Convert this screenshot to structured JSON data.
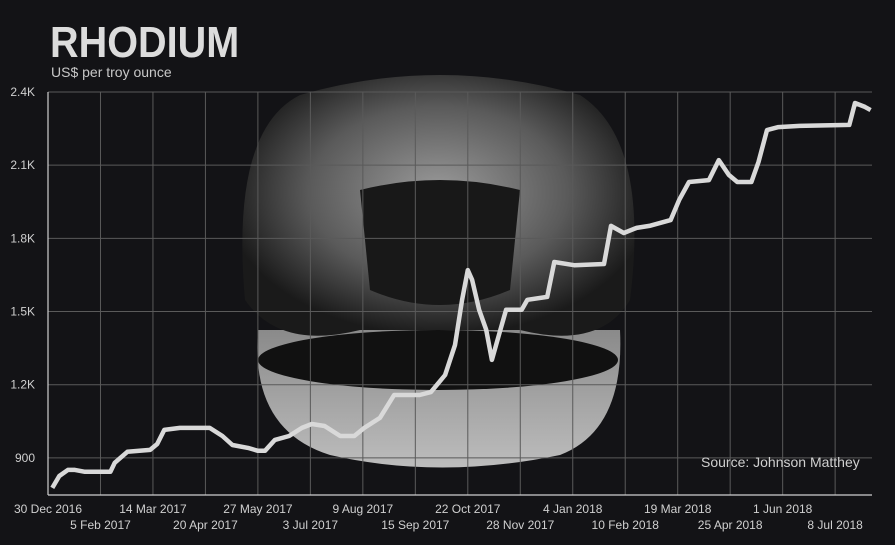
{
  "chart_data": {
    "type": "line",
    "title": "RHODIUM",
    "subtitle": "US$ per troy ounce",
    "source": "Source: Johnson Matthey",
    "xlabel": "",
    "ylabel": "",
    "xlim": [
      "2016-12-30",
      "2018-08-03"
    ],
    "ylim": [
      748,
      2400
    ],
    "grid": true,
    "y_ticks": [
      {
        "value": 900,
        "label": "900"
      },
      {
        "value": 1200,
        "label": "1.2K"
      },
      {
        "value": 1500,
        "label": "1.5K"
      },
      {
        "value": 1800,
        "label": "1.8K"
      },
      {
        "value": 2100,
        "label": "2.1K"
      },
      {
        "value": 2400,
        "label": "2.4K"
      }
    ],
    "x_ticks": [
      {
        "date": "2016-12-30",
        "label": "30 Dec 2016"
      },
      {
        "date": "2017-02-05",
        "label": "5 Feb 2017"
      },
      {
        "date": "2017-03-14",
        "label": "14 Mar 2017"
      },
      {
        "date": "2017-04-20",
        "label": "20 Apr 2017"
      },
      {
        "date": "2017-05-27",
        "label": "27 May 2017"
      },
      {
        "date": "2017-07-03",
        "label": "3 Jul 2017"
      },
      {
        "date": "2017-08-09",
        "label": "9 Aug 2017"
      },
      {
        "date": "2017-09-15",
        "label": "15 Sep 2017"
      },
      {
        "date": "2017-10-22",
        "label": "22 Oct 2017"
      },
      {
        "date": "2017-11-28",
        "label": "28 Nov 2017"
      },
      {
        "date": "2018-01-04",
        "label": "4 Jan 2018"
      },
      {
        "date": "2018-02-10",
        "label": "10 Feb 2018"
      },
      {
        "date": "2018-03-19",
        "label": "19 Mar 2018"
      },
      {
        "date": "2018-04-25",
        "label": "25 Apr 2018"
      },
      {
        "date": "2018-06-01",
        "label": "1 Jun 2018"
      },
      {
        "date": "2018-07-08",
        "label": "8 Jul 2018"
      }
    ],
    "line_color": "#d9d9d9",
    "series": [
      {
        "x": [
          "2017-01-02",
          "2017-01-07",
          "2017-01-13",
          "2017-01-18",
          "2017-01-25",
          "2017-02-12",
          "2017-02-15",
          "2017-02-19",
          "2017-02-24",
          "2017-03-12",
          "2017-03-17",
          "2017-03-22",
          "2017-04-02",
          "2017-04-23",
          "2017-05-02",
          "2017-05-09",
          "2017-05-20",
          "2017-05-27",
          "2017-06-01",
          "2017-06-08",
          "2017-06-18",
          "2017-06-27",
          "2017-07-04",
          "2017-07-13",
          "2017-07-24",
          "2017-08-03",
          "2017-08-10",
          "2017-08-21",
          "2017-08-31",
          "2017-09-18",
          "2017-09-26",
          "2017-10-06",
          "2017-10-13",
          "2017-10-18",
          "2017-10-22",
          "2017-10-25",
          "2017-10-30",
          "2017-11-04",
          "2017-11-08",
          "2017-11-13",
          "2017-11-18",
          "2017-11-29",
          "2017-12-03",
          "2017-12-17",
          "2017-12-22",
          "2018-01-05",
          "2018-01-26",
          "2018-01-31",
          "2018-02-09",
          "2018-02-18",
          "2018-02-27",
          "2018-03-14",
          "2018-03-20",
          "2018-03-27",
          "2018-04-10",
          "2018-04-17",
          "2018-04-24",
          "2018-04-30",
          "2018-05-10",
          "2018-05-15",
          "2018-05-21",
          "2018-05-29",
          "2018-06-13",
          "2018-07-18",
          "2018-07-22",
          "2018-07-29",
          "2018-08-02"
        ],
        "y": [
          777,
          826,
          851,
          851,
          843,
          843,
          880,
          900,
          925,
          933,
          957,
          1015,
          1023,
          1023,
          990,
          953,
          941,
          929,
          929,
          974,
          990,
          1023,
          1039,
          1031,
          990,
          990,
          1023,
          1064,
          1158,
          1158,
          1170,
          1240,
          1363,
          1548,
          1670,
          1630,
          1507,
          1425,
          1302,
          1405,
          1507,
          1507,
          1548,
          1560,
          1703,
          1690,
          1695,
          1851,
          1822,
          1843,
          1851,
          1875,
          1957,
          2031,
          2039,
          2121,
          2060,
          2031,
          2031,
          2113,
          2244,
          2256,
          2261,
          2265,
          2355,
          2339,
          2326
        ]
      }
    ]
  }
}
